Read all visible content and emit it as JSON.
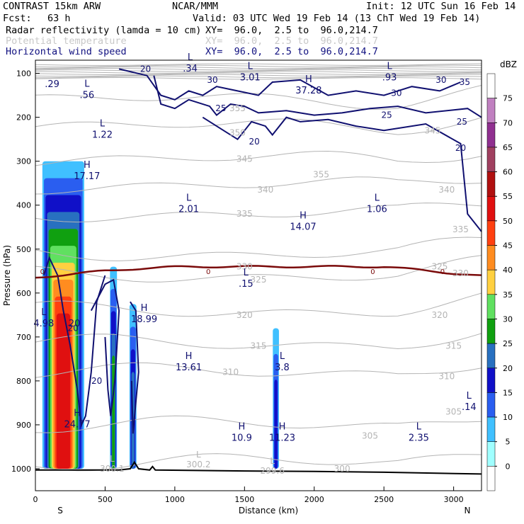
{
  "header": {
    "model": "CONTRAST 15km ARW",
    "center": "NCAR/MMM",
    "init": "Init: 12 UTC Sun 16 Feb 14",
    "fcst_label": "Fcst:",
    "fcst_value": "63 h",
    "valid": "Valid: 03 UTC Wed 19 Feb 14 (13 ChT Wed 19 Feb 14)",
    "fields": [
      {
        "name": "Radar reflectivity (lamda = 10 cm)",
        "xy": "XY=  96.0,  2.5 to  96.0,214.7"
      },
      {
        "name": "Potential temperature",
        "xy": "XY=  96.0,  2.5 to  96.0,214.7"
      },
      {
        "name": "Horizontal wind speed",
        "xy": "XY=  96.0,  2.5 to  96.0,214.7"
      }
    ]
  },
  "chart_data": {
    "type": "heatmap",
    "xlabel": "Distance (km)",
    "ylabel": "Pressure (hPa)",
    "xlim": [
      0,
      3200
    ],
    "ylim": [
      1050,
      70
    ],
    "x_ticks": [
      0,
      500,
      1000,
      1500,
      2000,
      2500,
      3000
    ],
    "y_ticks": [
      100,
      200,
      300,
      400,
      500,
      600,
      700,
      800,
      900,
      1000
    ],
    "x_end_labels": {
      "left": "S",
      "right": "N"
    },
    "colorbar": {
      "unit": "dBZ",
      "levels": [
        0,
        5,
        10,
        15,
        20,
        25,
        30,
        35,
        40,
        45,
        50,
        55,
        60,
        65,
        70,
        75
      ],
      "colors": [
        "#ffffff",
        "#a0ffff",
        "#40c0ff",
        "#2a5ef0",
        "#1010c8",
        "#2870c0",
        "#10a010",
        "#60e060",
        "#ffd040",
        "#ff8c20",
        "#ff4010",
        "#e01010",
        "#b01010",
        "#a04060",
        "#903090",
        "#c080c0",
        "#ffffff"
      ]
    },
    "reflectivity_columns": [
      {
        "x": 200,
        "top": 300,
        "bottom": 1000,
        "max_dbz": 45
      },
      {
        "x": 560,
        "top": 540,
        "bottom": 1000,
        "max_dbz": 20
      },
      {
        "x": 700,
        "top": 625,
        "bottom": 1000,
        "max_dbz": 15
      },
      {
        "x": 1725,
        "top": 680,
        "bottom": 1000,
        "max_dbz": 10
      }
    ],
    "theta_labels": [
      {
        "x": 1450,
        "p": 180,
        "v": "355"
      },
      {
        "x": 1450,
        "p": 235,
        "v": "350"
      },
      {
        "x": 1500,
        "p": 295,
        "v": "345"
      },
      {
        "x": 1650,
        "p": 365,
        "v": "340"
      },
      {
        "x": 1500,
        "p": 420,
        "v": "335"
      },
      {
        "x": 1500,
        "p": 540,
        "v": "330"
      },
      {
        "x": 1600,
        "p": 570,
        "v": "325"
      },
      {
        "x": 1500,
        "p": 650,
        "v": "320"
      },
      {
        "x": 1600,
        "p": 720,
        "v": "315"
      },
      {
        "x": 1400,
        "p": 780,
        "v": "310"
      },
      {
        "x": 2400,
        "p": 925,
        "v": "305"
      },
      {
        "x": 2200,
        "p": 1000,
        "v": "300"
      },
      {
        "x": 2850,
        "p": 230,
        "v": "345"
      },
      {
        "x": 2950,
        "p": 365,
        "v": "340"
      },
      {
        "x": 3050,
        "p": 455,
        "v": "335"
      },
      {
        "x": 3050,
        "p": 555,
        "v": "330"
      },
      {
        "x": 2900,
        "p": 540,
        "v": "325"
      },
      {
        "x": 2900,
        "p": 650,
        "v": "320"
      },
      {
        "x": 3000,
        "p": 720,
        "v": "315"
      },
      {
        "x": 2950,
        "p": 790,
        "v": "310"
      },
      {
        "x": 3000,
        "p": 870,
        "v": "305"
      },
      {
        "x": 2050,
        "p": 330,
        "v": "355"
      }
    ],
    "wind_labels": [
      {
        "x": 790,
        "p": 90,
        "v": "20"
      },
      {
        "x": 1270,
        "p": 115,
        "v": "30"
      },
      {
        "x": 1330,
        "p": 180,
        "v": "25"
      },
      {
        "x": 1570,
        "p": 255,
        "v": "20"
      },
      {
        "x": 2590,
        "p": 145,
        "v": "30"
      },
      {
        "x": 2520,
        "p": 195,
        "v": "25"
      },
      {
        "x": 3080,
        "p": 120,
        "v": "35"
      },
      {
        "x": 2910,
        "p": 115,
        "v": "30"
      },
      {
        "x": 3060,
        "p": 210,
        "v": "25"
      },
      {
        "x": 3050,
        "p": 270,
        "v": "20"
      },
      {
        "x": 270,
        "p": 680,
        "v": "20"
      },
      {
        "x": 440,
        "p": 800,
        "v": "20"
      }
    ],
    "hl_markers": [
      {
        "t": "L",
        "x": 370,
        "p": 140,
        "v": ".56"
      },
      {
        "x": 120,
        "p": 115,
        "v": ".29"
      },
      {
        "t": "L",
        "x": 480,
        "p": 230,
        "v": "1.22"
      },
      {
        "t": "H",
        "x": 370,
        "p": 325,
        "v": "17.17"
      },
      {
        "t": "L",
        "x": 1110,
        "p": 80,
        "v": ".34"
      },
      {
        "t": "L",
        "x": 1540,
        "p": 100,
        "v": "3.01"
      },
      {
        "t": "H",
        "x": 1960,
        "p": 130,
        "v": "37.28"
      },
      {
        "t": "L",
        "x": 2540,
        "p": 100,
        "v": ".93"
      },
      {
        "t": "L",
        "x": 1100,
        "p": 400,
        "v": "2.01"
      },
      {
        "t": "H",
        "x": 1920,
        "p": 440,
        "v": "14.07"
      },
      {
        "t": "L",
        "x": 2450,
        "p": 400,
        "v": "1.06"
      },
      {
        "t": "L",
        "x": 1510,
        "p": 570,
        "v": ".15"
      },
      {
        "t": "L",
        "x": 60,
        "p": 660,
        "v": "4.98"
      },
      {
        "t": "H",
        "x": 780,
        "p": 650,
        "v": "18.99"
      },
      {
        "t": "H",
        "x": 1100,
        "p": 760,
        "v": "13.61"
      },
      {
        "t": "L",
        "x": 1770,
        "p": 760,
        "v": "3.8"
      },
      {
        "t": "H",
        "x": 300,
        "p": 890,
        "v": "24.77"
      },
      {
        "t": "H",
        "x": 1480,
        "p": 920,
        "v": "10.9"
      },
      {
        "t": "H",
        "x": 1770,
        "p": 920,
        "v": "11.23"
      },
      {
        "t": "L",
        "x": 2750,
        "p": 920,
        "v": "2.35"
      },
      {
        "t": "L",
        "x": 3110,
        "p": 850,
        "v": ".14"
      },
      {
        "x": 280,
        "p": 660,
        "v": "20"
      }
    ],
    "grey_labels": [
      {
        "t": "L",
        "x": 550,
        "p": 1000,
        "v": "300.1"
      },
      {
        "t": "L",
        "x": 1170,
        "p": 990,
        "v": "300.2"
      },
      {
        "t": "L",
        "x": 1700,
        "p": 1005,
        "v": "299.6"
      }
    ],
    "zero_isotherm_label": "0",
    "terrain_line_label": ""
  }
}
